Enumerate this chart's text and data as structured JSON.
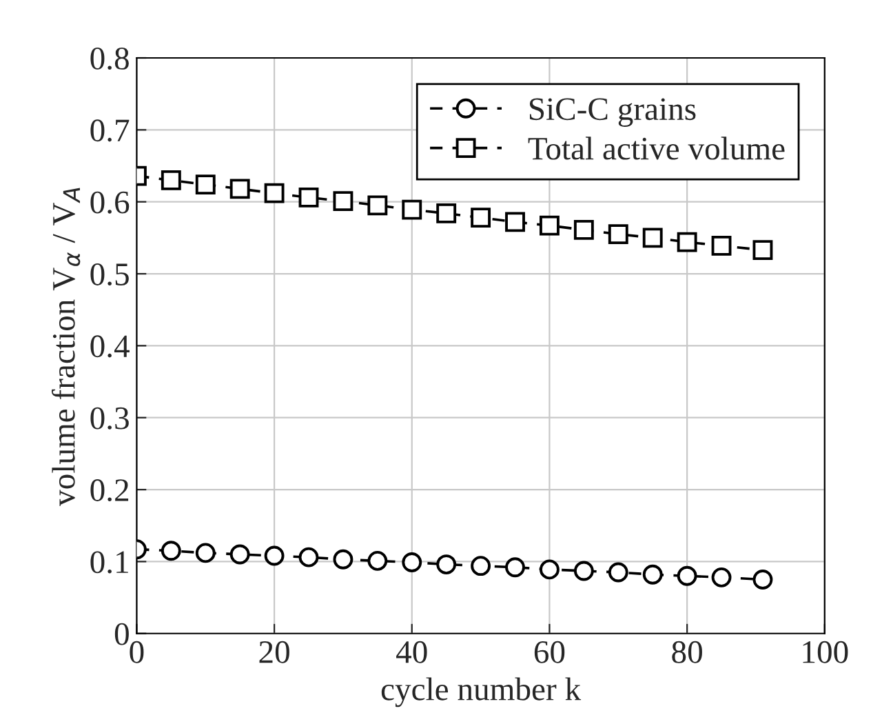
{
  "chart_data": {
    "type": "line",
    "xlabel": "cycle number k",
    "ylabel": "volume fraction V$_{α}$ / V$_{A}$",
    "xlim": [
      0,
      100
    ],
    "xticks": [
      0,
      20,
      40,
      60,
      80,
      100
    ],
    "ylim": [
      0,
      0.8
    ],
    "yticks": [
      0,
      0.1,
      0.2,
      0.3,
      0.4,
      0.5,
      0.6,
      0.7,
      0.8
    ],
    "x": [
      0,
      5,
      10,
      15,
      20,
      25,
      30,
      35,
      40,
      45,
      50,
      55,
      60,
      65,
      70,
      75,
      80,
      85,
      91
    ],
    "grid": true,
    "legend": "top right",
    "line_style": "dashed",
    "series": [
      {
        "name": "SiC-C grains",
        "color": "#000000",
        "marker": "circle",
        "values": [
          0.117,
          0.115,
          0.112,
          0.11,
          0.108,
          0.106,
          0.103,
          0.101,
          0.099,
          0.096,
          0.094,
          0.092,
          0.089,
          0.087,
          0.085,
          0.082,
          0.08,
          0.078,
          0.075
        ]
      },
      {
        "name": "Total active volume",
        "color": "#000000",
        "marker": "square",
        "values": [
          0.636,
          0.63,
          0.624,
          0.618,
          0.612,
          0.606,
          0.601,
          0.595,
          0.589,
          0.584,
          0.578,
          0.572,
          0.567,
          0.561,
          0.555,
          0.55,
          0.544,
          0.539,
          0.533
        ]
      }
    ]
  }
}
